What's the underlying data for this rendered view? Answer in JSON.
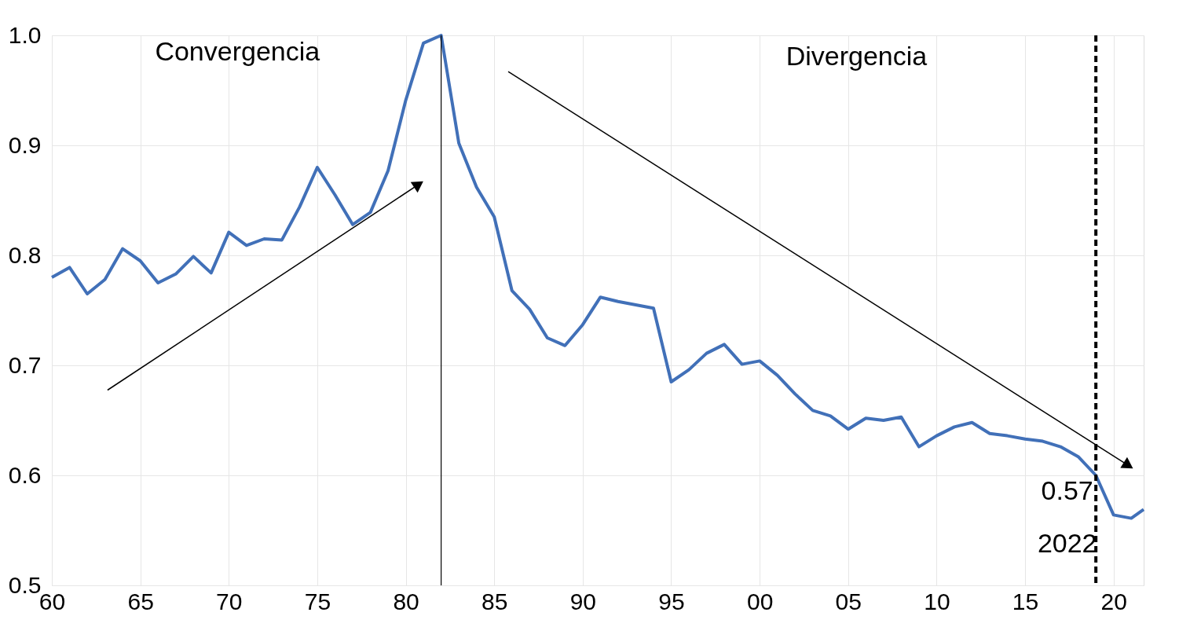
{
  "chart_data": {
    "type": "line",
    "x": [
      1960,
      1961,
      1962,
      1963,
      1964,
      1965,
      1966,
      1967,
      1968,
      1969,
      1970,
      1971,
      1972,
      1973,
      1974,
      1975,
      1976,
      1977,
      1978,
      1979,
      1980,
      1981,
      1982,
      1983,
      1984,
      1985,
      1986,
      1987,
      1988,
      1989,
      1990,
      1991,
      1992,
      1993,
      1994,
      1995,
      1996,
      1997,
      1998,
      1999,
      2000,
      2001,
      2002,
      2003,
      2004,
      2005,
      2006,
      2007,
      2008,
      2009,
      2010,
      2011,
      2012,
      2013,
      2014,
      2015,
      2016,
      2017,
      2018,
      2019,
      2020,
      2021,
      2021.7
    ],
    "series": [
      {
        "color": "#4170b8",
        "values": [
          0.78,
          0.789,
          0.765,
          0.778,
          0.806,
          0.795,
          0.775,
          0.783,
          0.799,
          0.784,
          0.821,
          0.809,
          0.815,
          0.814,
          0.844,
          0.88,
          0.855,
          0.828,
          0.839,
          0.877,
          0.941,
          0.993,
          1.0,
          0.902,
          0.862,
          0.835,
          0.768,
          0.751,
          0.725,
          0.718,
          0.737,
          0.762,
          0.758,
          0.755,
          0.752,
          0.685,
          0.696,
          0.711,
          0.719,
          0.701,
          0.704,
          0.691,
          0.674,
          0.659,
          0.654,
          0.642,
          0.652,
          0.65,
          0.653,
          0.626,
          0.636,
          0.644,
          0.648,
          0.638,
          0.636,
          0.633,
          0.631,
          0.626,
          0.617,
          0.6,
          0.564,
          0.561,
          0.569
        ]
      }
    ],
    "xlim": [
      1960,
      2021.7
    ],
    "xticks": [
      {
        "value": 1960,
        "label": "60"
      },
      {
        "value": 1965,
        "label": "65"
      },
      {
        "value": 1970,
        "label": "70"
      },
      {
        "value": 1975,
        "label": "75"
      },
      {
        "value": 1980,
        "label": "80"
      },
      {
        "value": 1985,
        "label": "85"
      },
      {
        "value": 1990,
        "label": "90"
      },
      {
        "value": 1995,
        "label": "95"
      },
      {
        "value": 2000,
        "label": "00"
      },
      {
        "value": 2005,
        "label": "05"
      },
      {
        "value": 2010,
        "label": "10"
      },
      {
        "value": 2015,
        "label": "15"
      },
      {
        "value": 2020,
        "label": "20"
      }
    ],
    "ylim": [
      0.5,
      1.0
    ],
    "yticks": [
      {
        "value": 0.5,
        "label": "0.5"
      },
      {
        "value": 0.6,
        "label": "0.6"
      },
      {
        "value": 0.7,
        "label": "0.7"
      },
      {
        "value": 0.8,
        "label": "0.8"
      },
      {
        "value": 0.9,
        "label": "0.9"
      },
      {
        "value": 1.0,
        "label": "1.0"
      }
    ],
    "grid": true,
    "ref_lines": [
      {
        "axis": "x",
        "value": 1982,
        "color": "#000000",
        "line_style": "solid"
      },
      {
        "axis": "x",
        "value": 2019,
        "color": "#000000",
        "line_style": "dashed"
      }
    ],
    "annotations": [
      "Convergencia",
      "Divergencia",
      "0.57",
      "2022"
    ]
  }
}
